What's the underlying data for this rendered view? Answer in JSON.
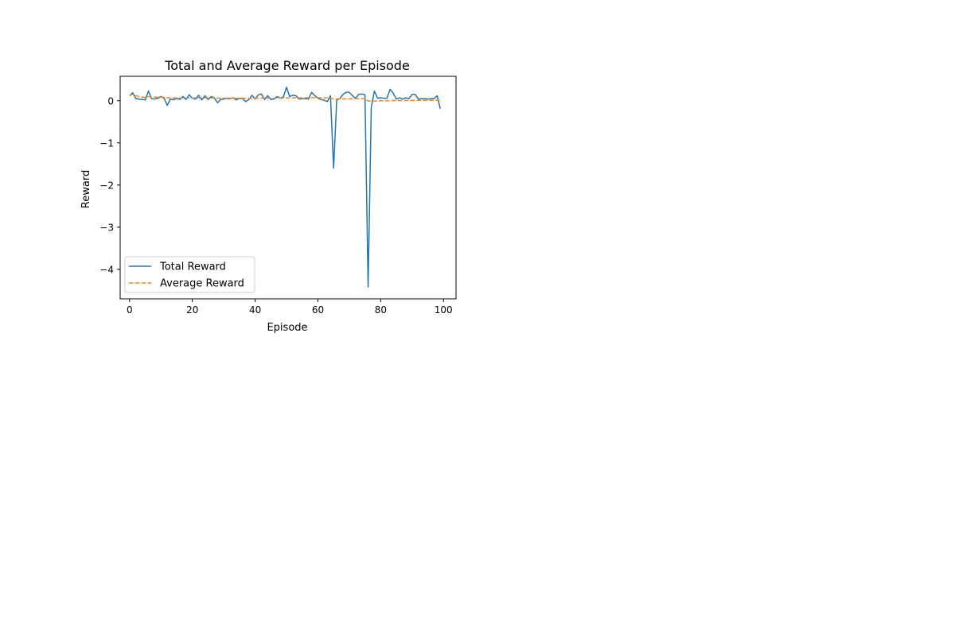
{
  "chart_data": {
    "type": "line",
    "title": "Total and Average Reward per Episode",
    "xlabel": "Episode",
    "ylabel": "Reward",
    "xlim": [
      -3,
      104
    ],
    "ylim": [
      -4.7,
      0.58
    ],
    "xticks": [
      0,
      20,
      40,
      60,
      80,
      100
    ],
    "yticks": [
      0,
      -1,
      -2,
      -3,
      -4
    ],
    "xtick_labels": [
      "0",
      "20",
      "40",
      "60",
      "80",
      "100"
    ],
    "ytick_labels": [
      "0",
      "−1",
      "−2",
      "−3",
      "−4"
    ],
    "grid": false,
    "legend_position": "lower-left",
    "series": [
      {
        "name": "Total Reward",
        "style": "solid",
        "color": "#1f77b4",
        "x": [
          0,
          1,
          2,
          3,
          4,
          5,
          6,
          7,
          8,
          9,
          10,
          11,
          12,
          13,
          14,
          15,
          16,
          17,
          18,
          19,
          20,
          21,
          22,
          23,
          24,
          25,
          26,
          27,
          28,
          29,
          30,
          31,
          32,
          33,
          34,
          35,
          36,
          37,
          38,
          39,
          40,
          41,
          42,
          43,
          44,
          45,
          46,
          47,
          48,
          49,
          50,
          51,
          52,
          53,
          54,
          55,
          56,
          57,
          58,
          59,
          60,
          61,
          62,
          63,
          64,
          65,
          66,
          67,
          68,
          69,
          70,
          71,
          72,
          73,
          74,
          75,
          76,
          77,
          78,
          79,
          80,
          81,
          82,
          83,
          84,
          85,
          86,
          87,
          88,
          89,
          90,
          91,
          92,
          93,
          94,
          95,
          96,
          97,
          98,
          99
        ],
        "values": [
          0.12,
          0.19,
          0.05,
          0.04,
          0.03,
          0.02,
          0.23,
          0.05,
          0.04,
          0.06,
          0.1,
          0.06,
          -0.11,
          0.04,
          0.02,
          0.06,
          0.03,
          0.1,
          0.03,
          0.14,
          0.06,
          0.04,
          0.13,
          0.02,
          0.12,
          0.03,
          0.1,
          0.07,
          -0.05,
          0.03,
          0.04,
          0.06,
          0.05,
          0.07,
          0.02,
          0.06,
          0.05,
          -0.02,
          0.03,
          0.13,
          0.04,
          0.14,
          0.16,
          0.03,
          0.12,
          0.03,
          0.04,
          0.1,
          0.06,
          0.09,
          0.32,
          0.1,
          0.13,
          0.12,
          0.04,
          0.05,
          0.05,
          0.04,
          0.2,
          0.12,
          0.06,
          0.03,
          0.01,
          -0.02,
          0.12,
          -1.6,
          0.02,
          0.05,
          0.15,
          0.2,
          0.2,
          0.12,
          0.06,
          0.15,
          0.16,
          0.14,
          -4.42,
          -0.15,
          0.23,
          0.06,
          0.07,
          0.06,
          0.06,
          0.27,
          0.18,
          0.04,
          0.07,
          0.04,
          0.07,
          0.05,
          0.15,
          0.15,
          0.04,
          0.05,
          0.05,
          0.04,
          0.05,
          0.05,
          0.12,
          -0.19
        ]
      },
      {
        "name": "Average Reward",
        "style": "dashed",
        "color": "#ff7f0e",
        "x": [
          0,
          1,
          2,
          3,
          4,
          5,
          6,
          7,
          8,
          9,
          10,
          11,
          12,
          13,
          14,
          15,
          16,
          17,
          18,
          19,
          20,
          21,
          22,
          23,
          24,
          25,
          26,
          27,
          28,
          29,
          30,
          31,
          32,
          33,
          34,
          35,
          36,
          37,
          38,
          39,
          40,
          41,
          42,
          43,
          44,
          45,
          46,
          47,
          48,
          49,
          50,
          51,
          52,
          53,
          54,
          55,
          56,
          57,
          58,
          59,
          60,
          61,
          62,
          63,
          64,
          65,
          66,
          67,
          68,
          69,
          70,
          71,
          72,
          73,
          74,
          75,
          76,
          77,
          78,
          79,
          80,
          81,
          82,
          83,
          84,
          85,
          86,
          87,
          88,
          89,
          90,
          91,
          92,
          93,
          94,
          95,
          96,
          97,
          98,
          99
        ],
        "values": [
          0.12,
          0.155,
          0.12,
          0.1,
          0.087,
          0.077,
          0.1,
          0.094,
          0.088,
          0.085,
          0.087,
          0.085,
          0.07,
          0.068,
          0.065,
          0.065,
          0.063,
          0.065,
          0.063,
          0.067,
          0.066,
          0.065,
          0.068,
          0.066,
          0.068,
          0.066,
          0.067,
          0.067,
          0.063,
          0.062,
          0.061,
          0.061,
          0.061,
          0.061,
          0.06,
          0.06,
          0.06,
          0.058,
          0.057,
          0.059,
          0.058,
          0.06,
          0.062,
          0.061,
          0.062,
          0.061,
          0.061,
          0.062,
          0.062,
          0.062,
          0.067,
          0.068,
          0.069,
          0.07,
          0.069,
          0.069,
          0.069,
          0.068,
          0.07,
          0.071,
          0.071,
          0.07,
          0.069,
          0.068,
          0.068,
          0.042,
          0.042,
          0.042,
          0.044,
          0.046,
          0.048,
          0.049,
          0.049,
          0.05,
          0.051,
          0.052,
          -0.006,
          -0.008,
          -0.005,
          -0.004,
          -0.003,
          -0.002,
          -0.001,
          0.002,
          0.004,
          0.004,
          0.005,
          0.005,
          0.006,
          0.006,
          0.008,
          0.009,
          0.009,
          0.01,
          0.01,
          0.01,
          0.011,
          0.011,
          0.012,
          0.01
        ]
      }
    ]
  }
}
